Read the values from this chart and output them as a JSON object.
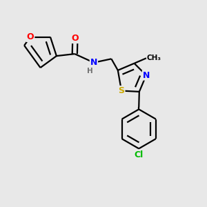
{
  "background_color": "#e8e8e8",
  "atom_colors": {
    "C": "#000000",
    "H": "#707070",
    "N": "#0000ff",
    "O": "#ff0000",
    "S": "#ccaa00",
    "Cl": "#00bb00"
  },
  "bond_color": "#000000",
  "bond_width": 1.6,
  "dbo": 0.012,
  "font_size": 9,
  "fig_size": [
    3.0,
    3.0
  ],
  "dpi": 100
}
